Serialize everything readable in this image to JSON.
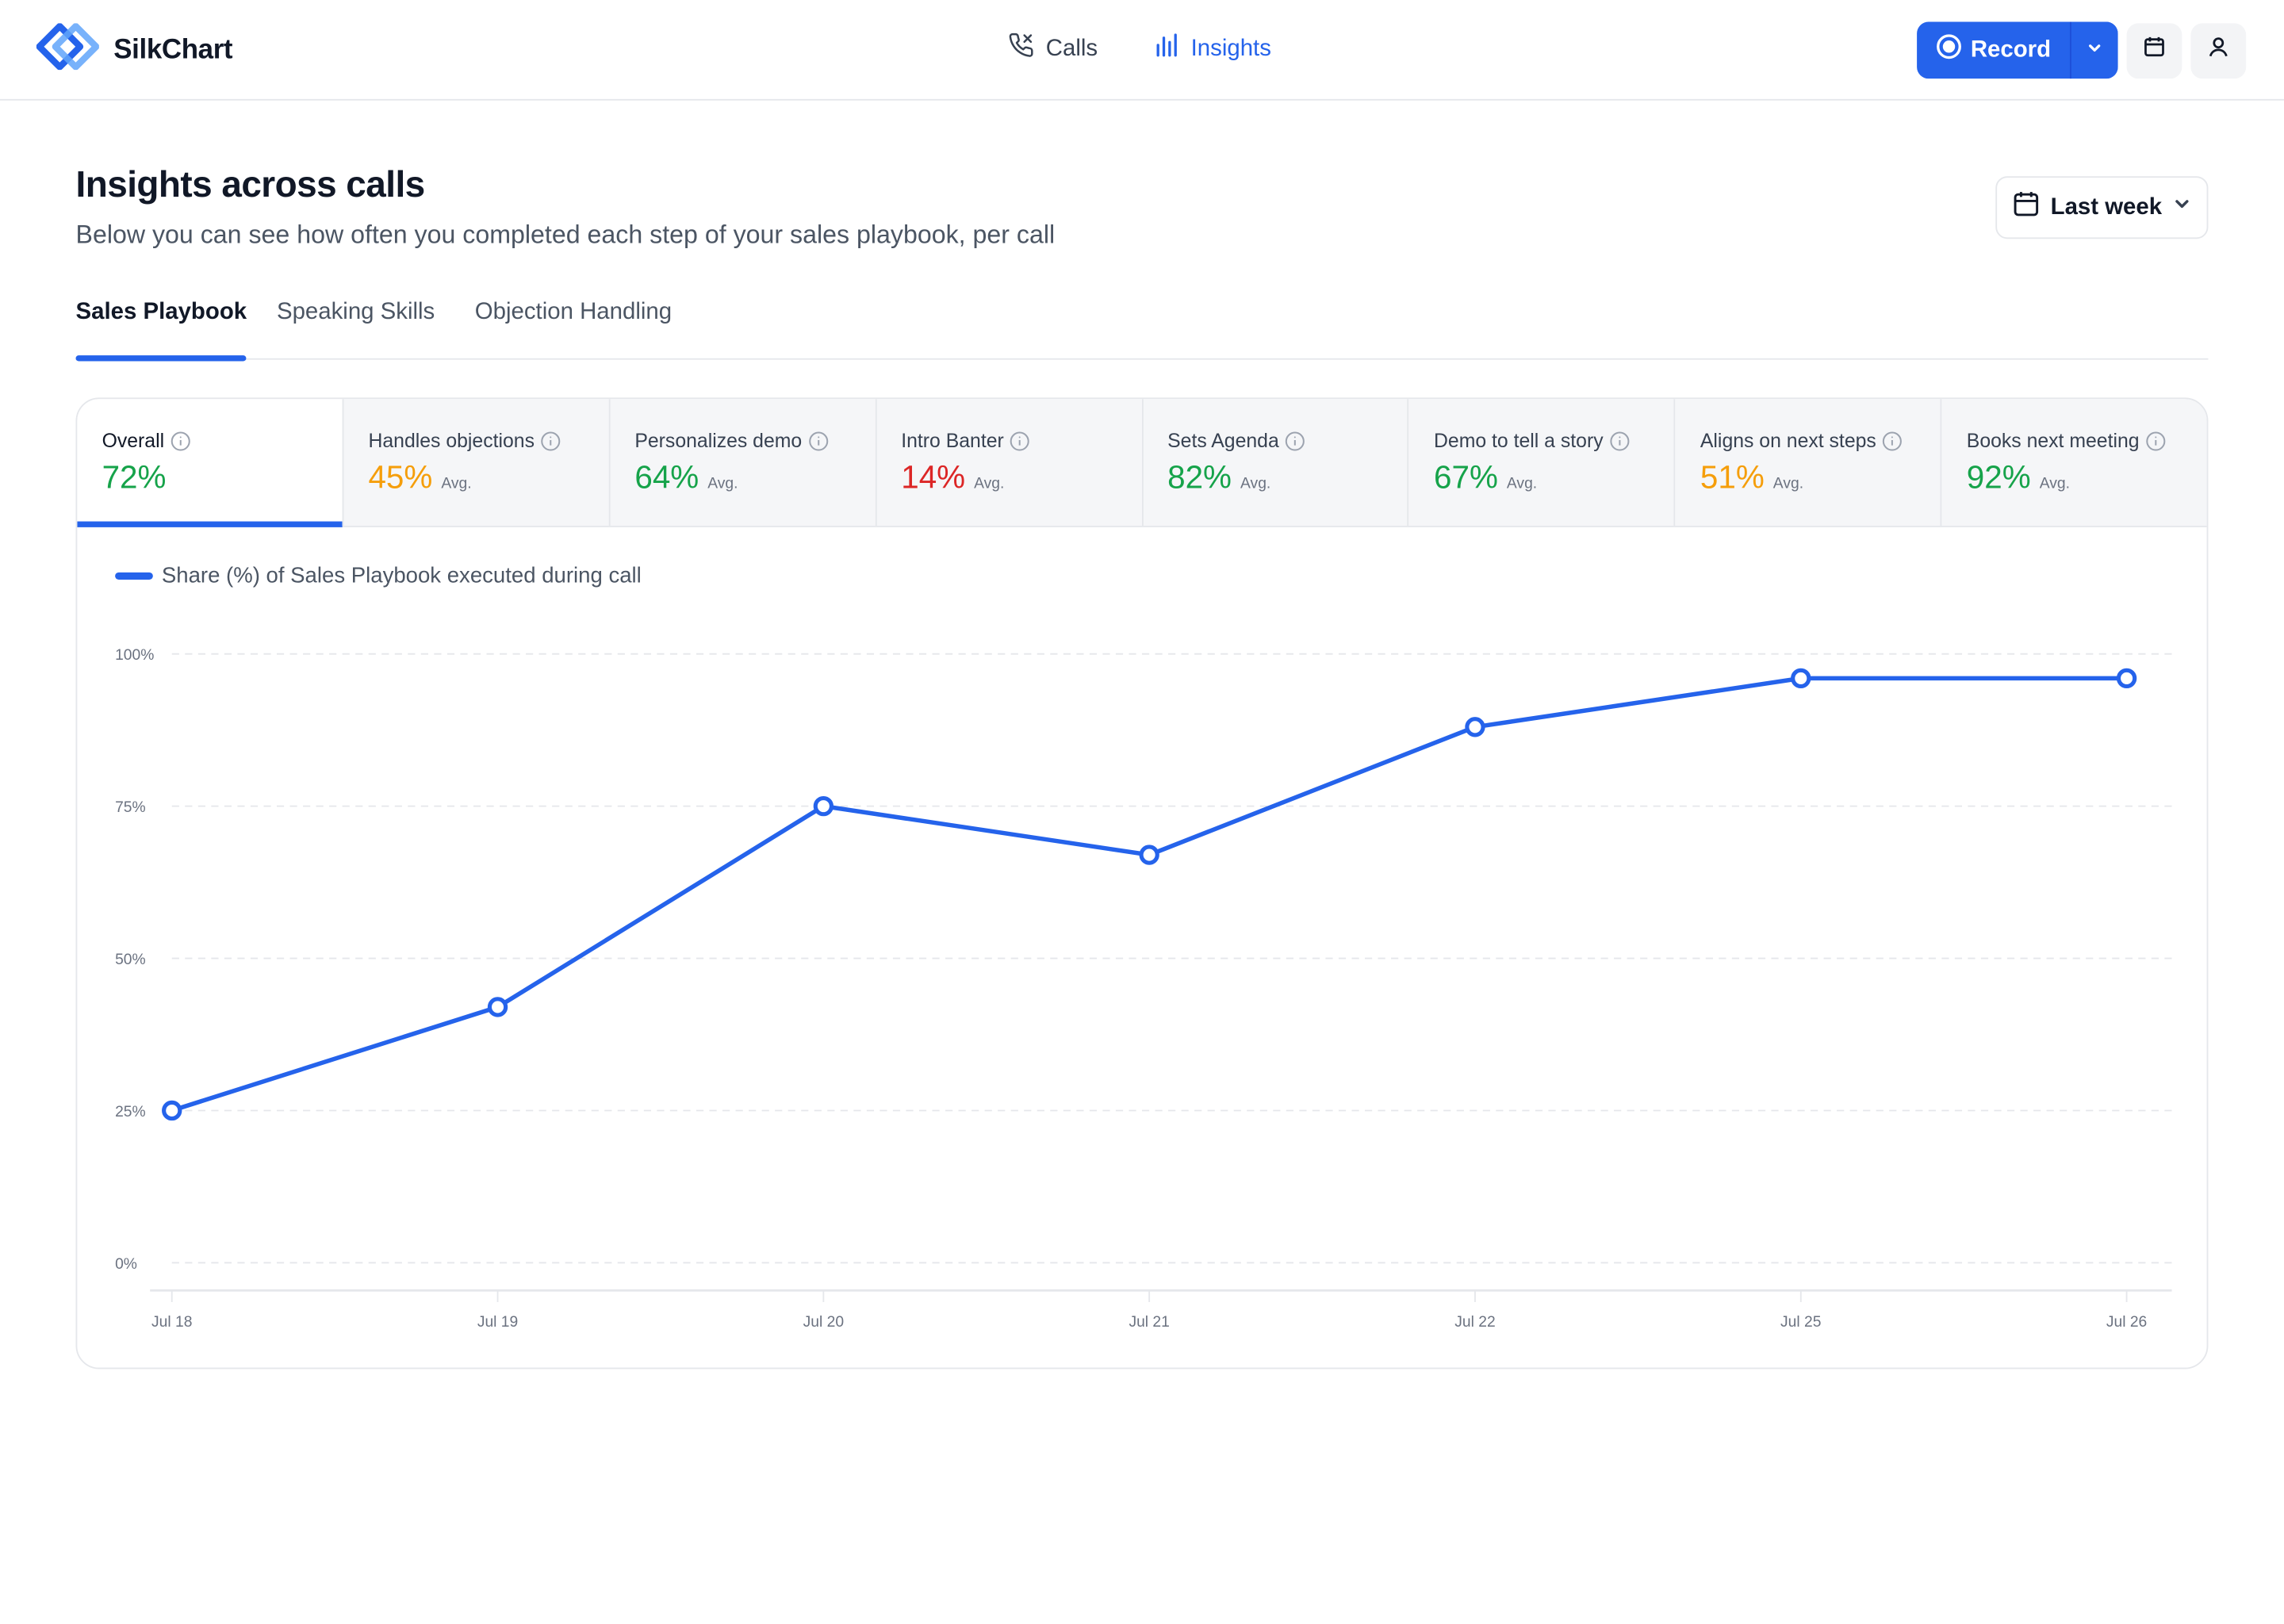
{
  "app": {
    "name": "SilkChart",
    "nav": [
      {
        "label": "Calls",
        "icon": "phone-icon",
        "active": false
      },
      {
        "label": "Insights",
        "icon": "bar-chart-icon",
        "active": true
      }
    ],
    "record_label": "Record",
    "accent": "#2563eb"
  },
  "header": {
    "title": "Insights across calls",
    "subtitle": "Below you can see how often you completed each step of your sales playbook, per call",
    "period": "Last week"
  },
  "tabs": [
    {
      "label": "Sales Playbook",
      "active": true
    },
    {
      "label": "Speaking Skills",
      "active": false
    },
    {
      "label": "Objection Handling",
      "active": false
    }
  ],
  "metrics": [
    {
      "label": "Overall",
      "value": "72%",
      "avg": "",
      "color": "#16a34a",
      "active": true
    },
    {
      "label": "Handles objections",
      "value": "45%",
      "avg": "Avg.",
      "color": "#f59e0b",
      "active": false
    },
    {
      "label": "Personalizes demo",
      "value": "64%",
      "avg": "Avg.",
      "color": "#16a34a",
      "active": false
    },
    {
      "label": "Intro Banter",
      "value": "14%",
      "avg": "Avg.",
      "color": "#dc2626",
      "active": false
    },
    {
      "label": "Sets Agenda",
      "value": "82%",
      "avg": "Avg.",
      "color": "#16a34a",
      "active": false
    },
    {
      "label": "Demo to tell a story",
      "value": "67%",
      "avg": "Avg.",
      "color": "#16a34a",
      "active": false
    },
    {
      "label": "Aligns on next steps",
      "value": "51%",
      "avg": "Avg.",
      "color": "#f59e0b",
      "active": false
    },
    {
      "label": "Books next meeting",
      "value": "92%",
      "avg": "Avg.",
      "color": "#16a34a",
      "active": false
    }
  ],
  "chart_data": {
    "type": "line",
    "legend": "Share (%) of Sales Playbook executed during call",
    "categories": [
      "Jul 18",
      "Jul 19",
      "Jul 20",
      "Jul 21",
      "Jul 22",
      "Jul 25",
      "Jul 26"
    ],
    "series": [
      {
        "name": "Share (%) of Sales Playbook executed during call",
        "values": [
          25,
          42,
          75,
          67,
          88,
          96,
          96
        ],
        "color": "#2563eb"
      }
    ],
    "yticks": [
      "0%",
      "25%",
      "50%",
      "75%",
      "100%"
    ],
    "ylim": [
      0,
      100
    ],
    "grid": true
  }
}
